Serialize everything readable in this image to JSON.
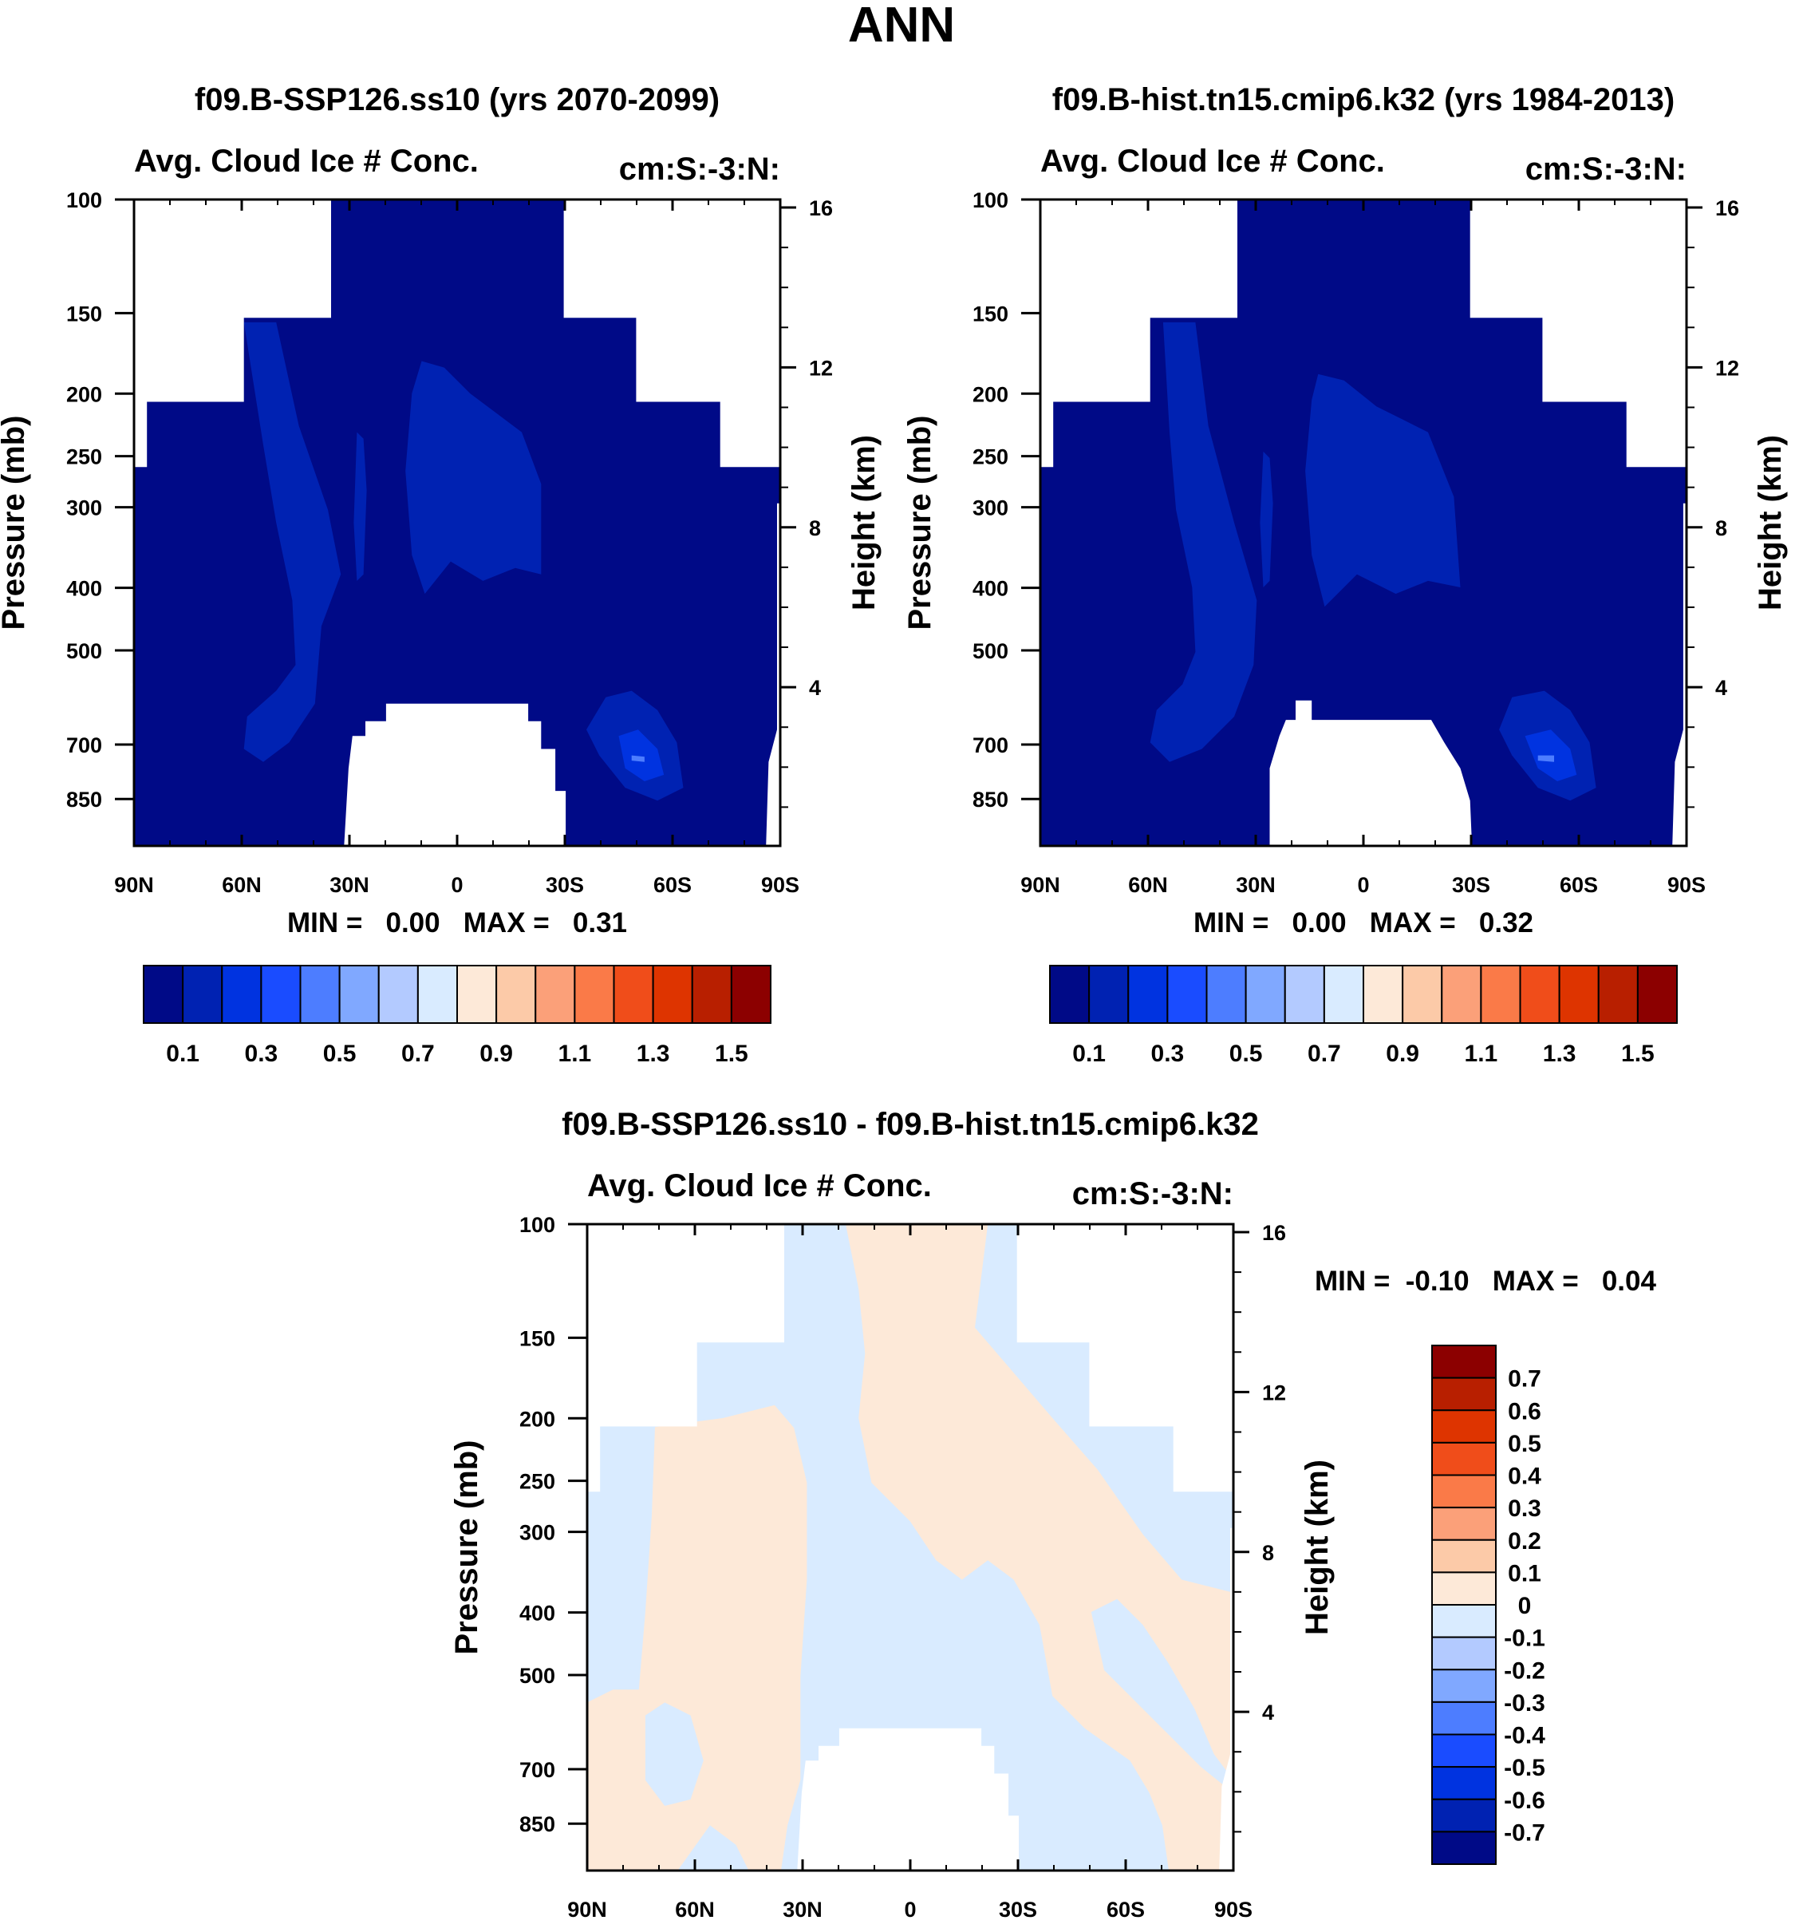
{
  "figure_title": "ANN",
  "chart_data": [
    {
      "id": "panel1",
      "type": "contour",
      "title": "f09.B-SSP126.ss10 (yrs 2070-2099)",
      "subtitle_left": "Avg. Cloud Ice # Conc.",
      "subtitle_right": "cm:S:-3:N:",
      "xlabel": "",
      "ylabel": "Pressure (mb)",
      "ylabel_right": "Height (km)",
      "x_ticks": [
        "90N",
        "60N",
        "30N",
        "0",
        "30S",
        "60S",
        "90S"
      ],
      "y_ticks": [
        "100",
        "150",
        "200",
        "250",
        "300",
        "400",
        "500",
        "700",
        "850"
      ],
      "y_ticks_right": [
        "16",
        "12",
        "8",
        "4"
      ],
      "stats": "MIN =   0.00   MAX =   0.31",
      "colorbar_labels": [
        "0.1",
        "0.3",
        "0.5",
        "0.7",
        "0.9",
        "1.1",
        "1.3",
        "1.5"
      ],
      "colorbar_colors": [
        "#000a87",
        "#0022b2",
        "#0033e0",
        "#1a4cff",
        "#4d7dff",
        "#80a8ff",
        "#b3caff",
        "#d9ebff",
        "#fde9d8",
        "#fccaa8",
        "#fba079",
        "#fa7a48",
        "#f04d1a",
        "#de3400",
        "#b81f00",
        "#8c0000"
      ]
    },
    {
      "id": "panel2",
      "type": "contour",
      "title": "f09.B-hist.tn15.cmip6.k32 (yrs 1984-2013)",
      "subtitle_left": "Avg. Cloud Ice # Conc.",
      "subtitle_right": "cm:S:-3:N:",
      "xlabel": "",
      "ylabel": "Pressure (mb)",
      "ylabel_right": "Height (km)",
      "x_ticks": [
        "90N",
        "60N",
        "30N",
        "0",
        "30S",
        "60S",
        "90S"
      ],
      "y_ticks": [
        "100",
        "150",
        "200",
        "250",
        "300",
        "400",
        "500",
        "700",
        "850"
      ],
      "y_ticks_right": [
        "16",
        "12",
        "8",
        "4"
      ],
      "stats": "MIN =   0.00   MAX =   0.32",
      "colorbar_labels": [
        "0.1",
        "0.3",
        "0.5",
        "0.7",
        "0.9",
        "1.1",
        "1.3",
        "1.5"
      ],
      "colorbar_colors": [
        "#000a87",
        "#0022b2",
        "#0033e0",
        "#1a4cff",
        "#4d7dff",
        "#80a8ff",
        "#b3caff",
        "#d9ebff",
        "#fde9d8",
        "#fccaa8",
        "#fba079",
        "#fa7a48",
        "#f04d1a",
        "#de3400",
        "#b81f00",
        "#8c0000"
      ]
    },
    {
      "id": "panel3",
      "type": "contour",
      "title": "f09.B-SSP126.ss10 - f09.B-hist.tn15.cmip6.k32",
      "subtitle_left": "Avg. Cloud Ice # Conc.",
      "subtitle_right": "cm:S:-3:N:",
      "xlabel": "",
      "ylabel": "Pressure (mb)",
      "ylabel_right": "Height (km)",
      "x_ticks": [
        "90N",
        "60N",
        "30N",
        "0",
        "30S",
        "60S",
        "90S"
      ],
      "y_ticks": [
        "100",
        "150",
        "200",
        "250",
        "300",
        "400",
        "500",
        "700",
        "850"
      ],
      "y_ticks_right": [
        "16",
        "12",
        "8",
        "4"
      ],
      "stats": "MIN =  -0.10   MAX =   0.04",
      "colorbar_labels": [
        "0.7",
        "0.6",
        "0.5",
        "0.4",
        "0.3",
        "0.2",
        "0.1",
        "0",
        "-0.1",
        "-0.2",
        "-0.3",
        "-0.4",
        "-0.5",
        "-0.6",
        "-0.7"
      ],
      "colorbar_colors": [
        "#8c0000",
        "#b81f00",
        "#de3400",
        "#f04d1a",
        "#fa7a48",
        "#fba079",
        "#fccaa8",
        "#fde9d8",
        "#d9ebff",
        "#b3caff",
        "#80a8ff",
        "#4d7dff",
        "#1a4cff",
        "#0033e0",
        "#0022b2",
        "#000a87"
      ]
    }
  ]
}
